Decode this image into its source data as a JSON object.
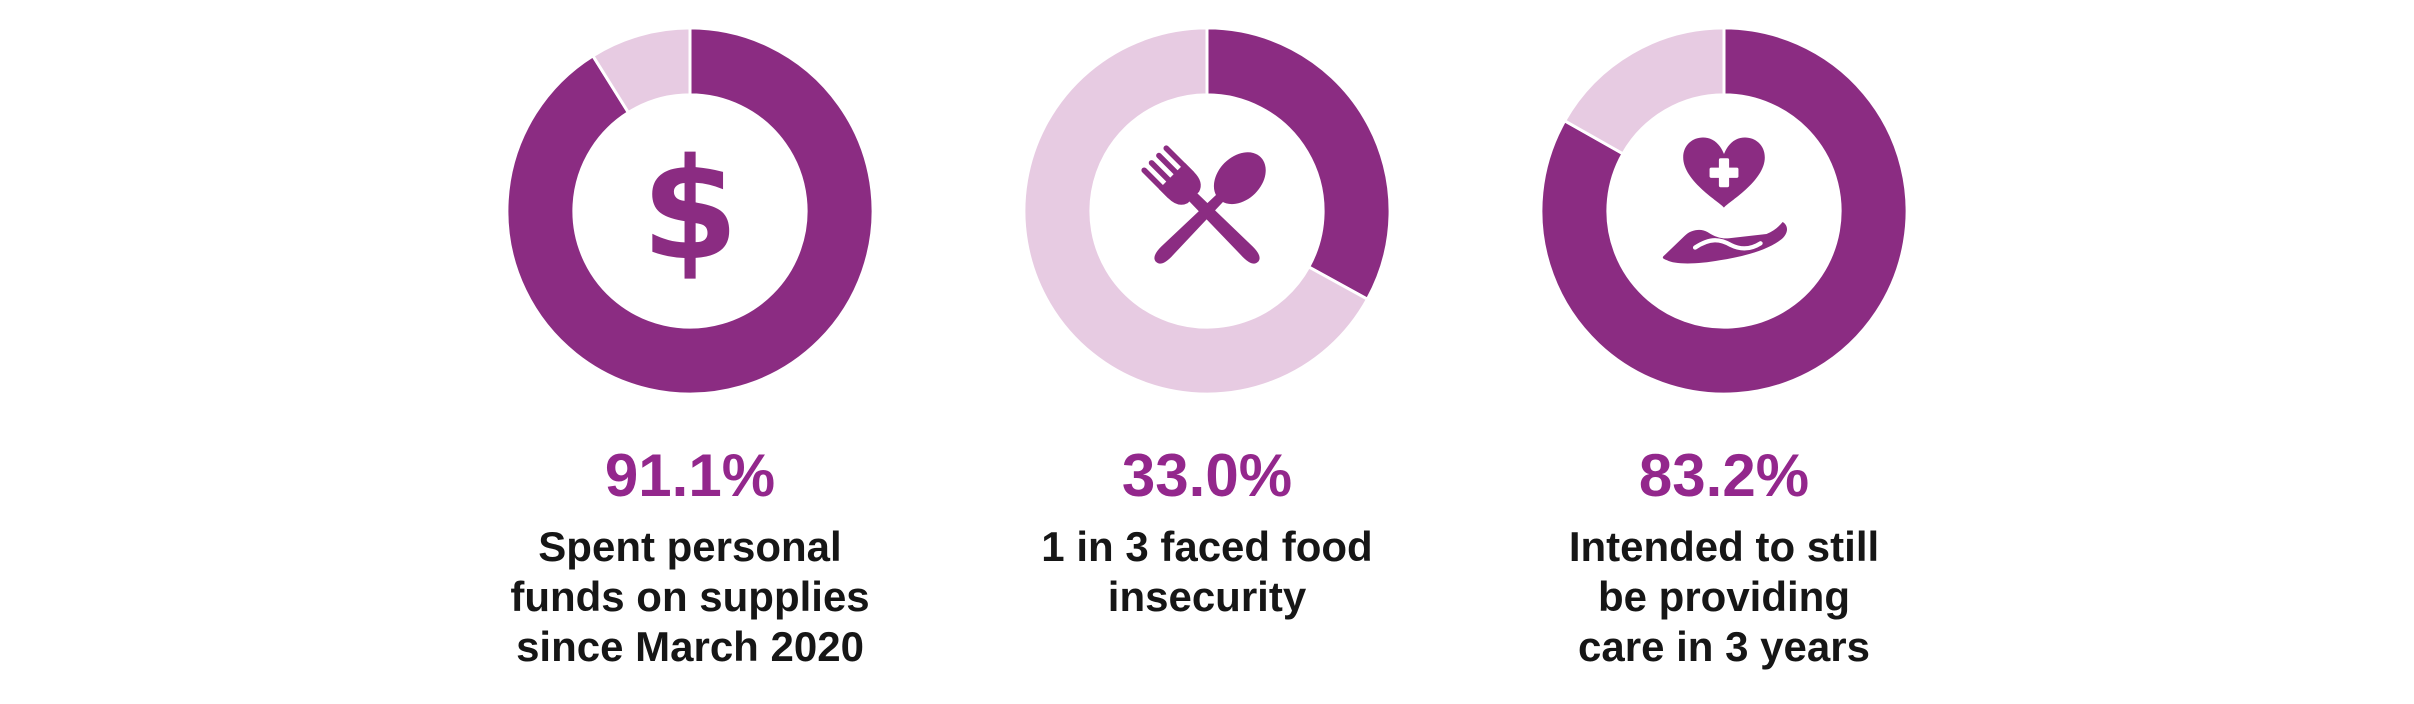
{
  "colors": {
    "filled": "#8B2C82",
    "remainder": "#E7CBE2",
    "divider": "#FFFFFF",
    "percent_text": "#93278C",
    "caption_text": "#161616",
    "background": "#FFFFFF"
  },
  "chart_data": [
    {
      "type": "donut",
      "value": 91.1,
      "value_label": "91.1%",
      "caption": "Spent personal funds on supplies since March 2020",
      "caption_lines": [
        "Spent personal",
        "funds on supplies",
        "since March 2020"
      ],
      "segments": [
        {
          "name": "filled",
          "value": 91.1
        },
        {
          "name": "remainder",
          "value": 8.9
        }
      ],
      "icon": "dollar-sign-icon",
      "icon_glyph": "$",
      "start_angle_deg": 0,
      "direction": "clockwise"
    },
    {
      "type": "donut",
      "value": 33.0,
      "value_label": "33.0%",
      "caption": "1 in 3 faced food insecurity",
      "caption_lines": [
        "1 in 3 faced food",
        "insecurity"
      ],
      "segments": [
        {
          "name": "filled",
          "value": 33.0
        },
        {
          "name": "remainder",
          "value": 67.0
        }
      ],
      "icon": "fork-and-spoon-icon",
      "start_angle_deg": 0,
      "direction": "clockwise"
    },
    {
      "type": "donut",
      "value": 83.2,
      "value_label": "83.2%",
      "caption": "Intended to still be providing care in 3 years",
      "caption_lines": [
        "Intended to still",
        "be providing",
        "care in 3 years"
      ],
      "segments": [
        {
          "name": "filled",
          "value": 83.2
        },
        {
          "name": "remainder",
          "value": 16.8
        }
      ],
      "icon": "heart-in-hand-icon",
      "start_angle_deg": 0,
      "direction": "clockwise"
    }
  ]
}
